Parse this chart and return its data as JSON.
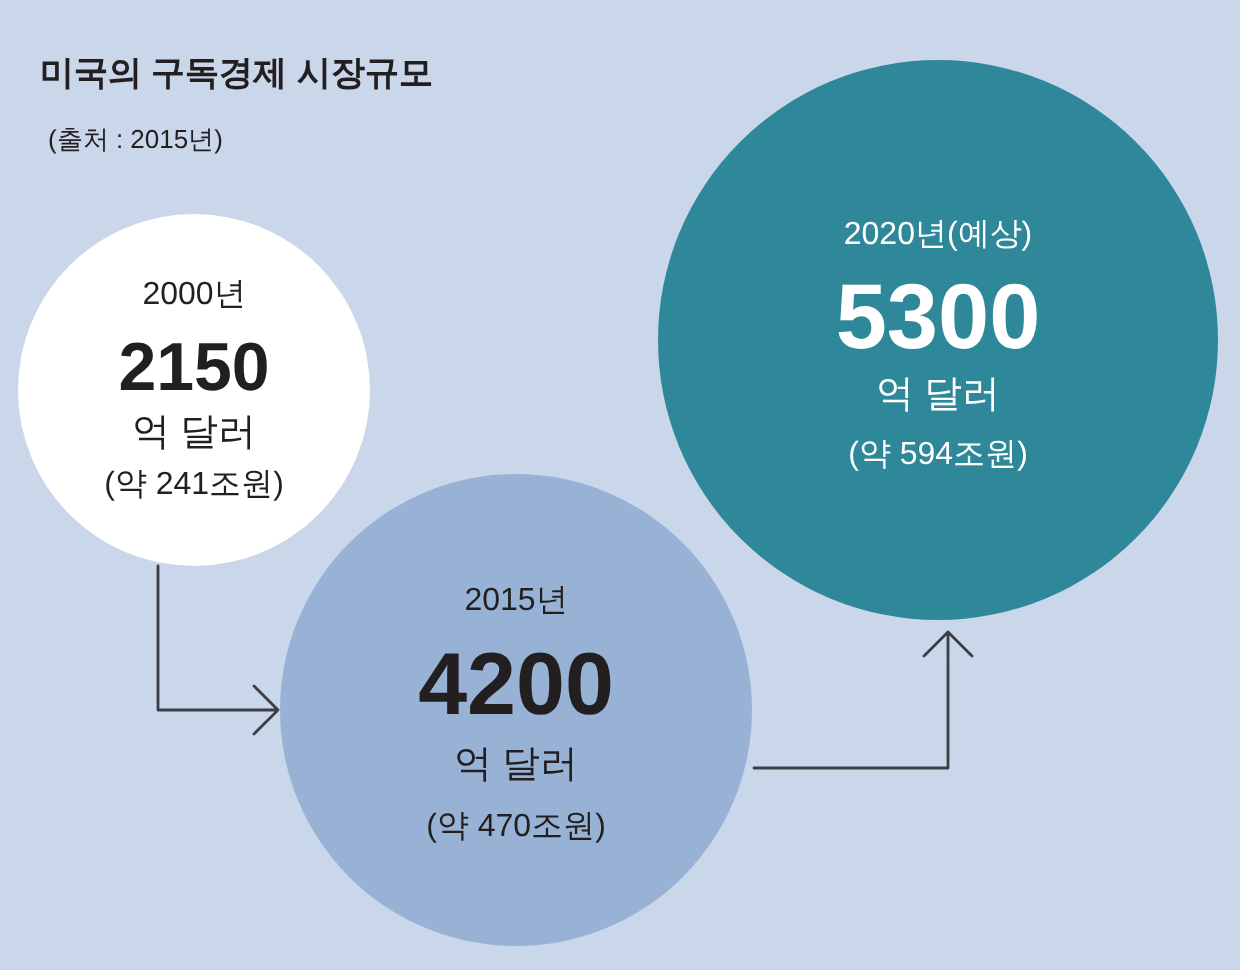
{
  "chart_data": {
    "type": "other",
    "title": "미국의 구독경제 시장규모",
    "categories": [
      "2000년",
      "2015년",
      "2020년(예상)"
    ],
    "values": [
      2150,
      4200,
      5300
    ],
    "colors": [
      "#ffffff",
      "#98b2d6",
      "#2f8899"
    ],
    "data_labels": true,
    "annotations": [
      "(출처 : 2015년)",
      {
        "text": "억 달러",
        "x": "2000년"
      },
      {
        "text": "(약 241조원)",
        "x": "2000년"
      },
      {
        "text": "억 달러",
        "x": "2015년"
      },
      {
        "text": "(약 470조원)",
        "x": "2015년"
      },
      {
        "text": "억 달러",
        "x": "2020년(예상)"
      },
      {
        "text": "(약 594조원)",
        "x": "2020년(예상)"
      }
    ]
  }
}
